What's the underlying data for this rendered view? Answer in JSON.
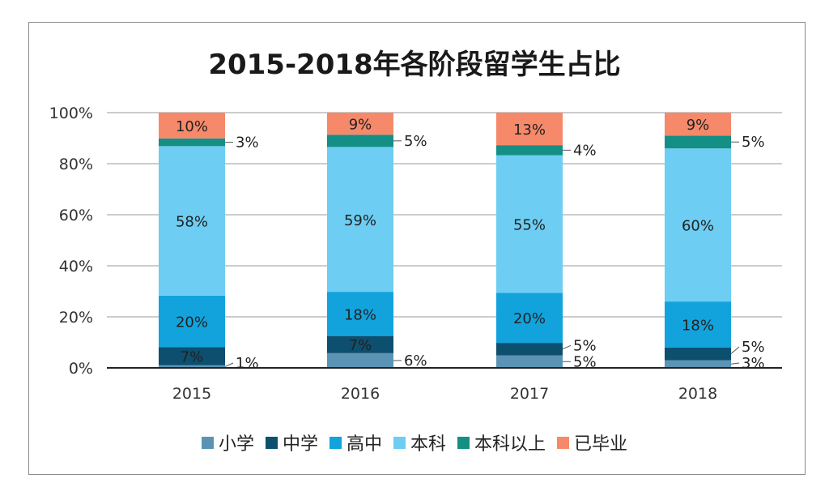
{
  "chart_data": {
    "type": "bar",
    "stacked": true,
    "title": "2015-2018年各阶段留学生占比",
    "categories": [
      "2015",
      "2016",
      "2017",
      "2018"
    ],
    "series": [
      {
        "name": "小学",
        "values": [
          1,
          6,
          5,
          3
        ],
        "color": "#5b93b5"
      },
      {
        "name": "中学",
        "values": [
          7,
          7,
          5,
          5
        ],
        "color": "#0d4f6e"
      },
      {
        "name": "高中",
        "values": [
          20,
          18,
          20,
          18
        ],
        "color": "#12a3dd"
      },
      {
        "name": "本科",
        "values": [
          58,
          59,
          55,
          60
        ],
        "color": "#6dcdf2"
      },
      {
        "name": "本科以上",
        "values": [
          3,
          5,
          4,
          5
        ],
        "color": "#148f85"
      },
      {
        "name": "已毕业",
        "values": [
          10,
          9,
          13,
          9
        ],
        "color": "#f5896a"
      }
    ],
    "yticks": [
      "0%",
      "20%",
      "40%",
      "60%",
      "80%",
      "100%"
    ],
    "ylim": [
      0,
      100
    ],
    "grid": true,
    "legend": "bottom"
  }
}
